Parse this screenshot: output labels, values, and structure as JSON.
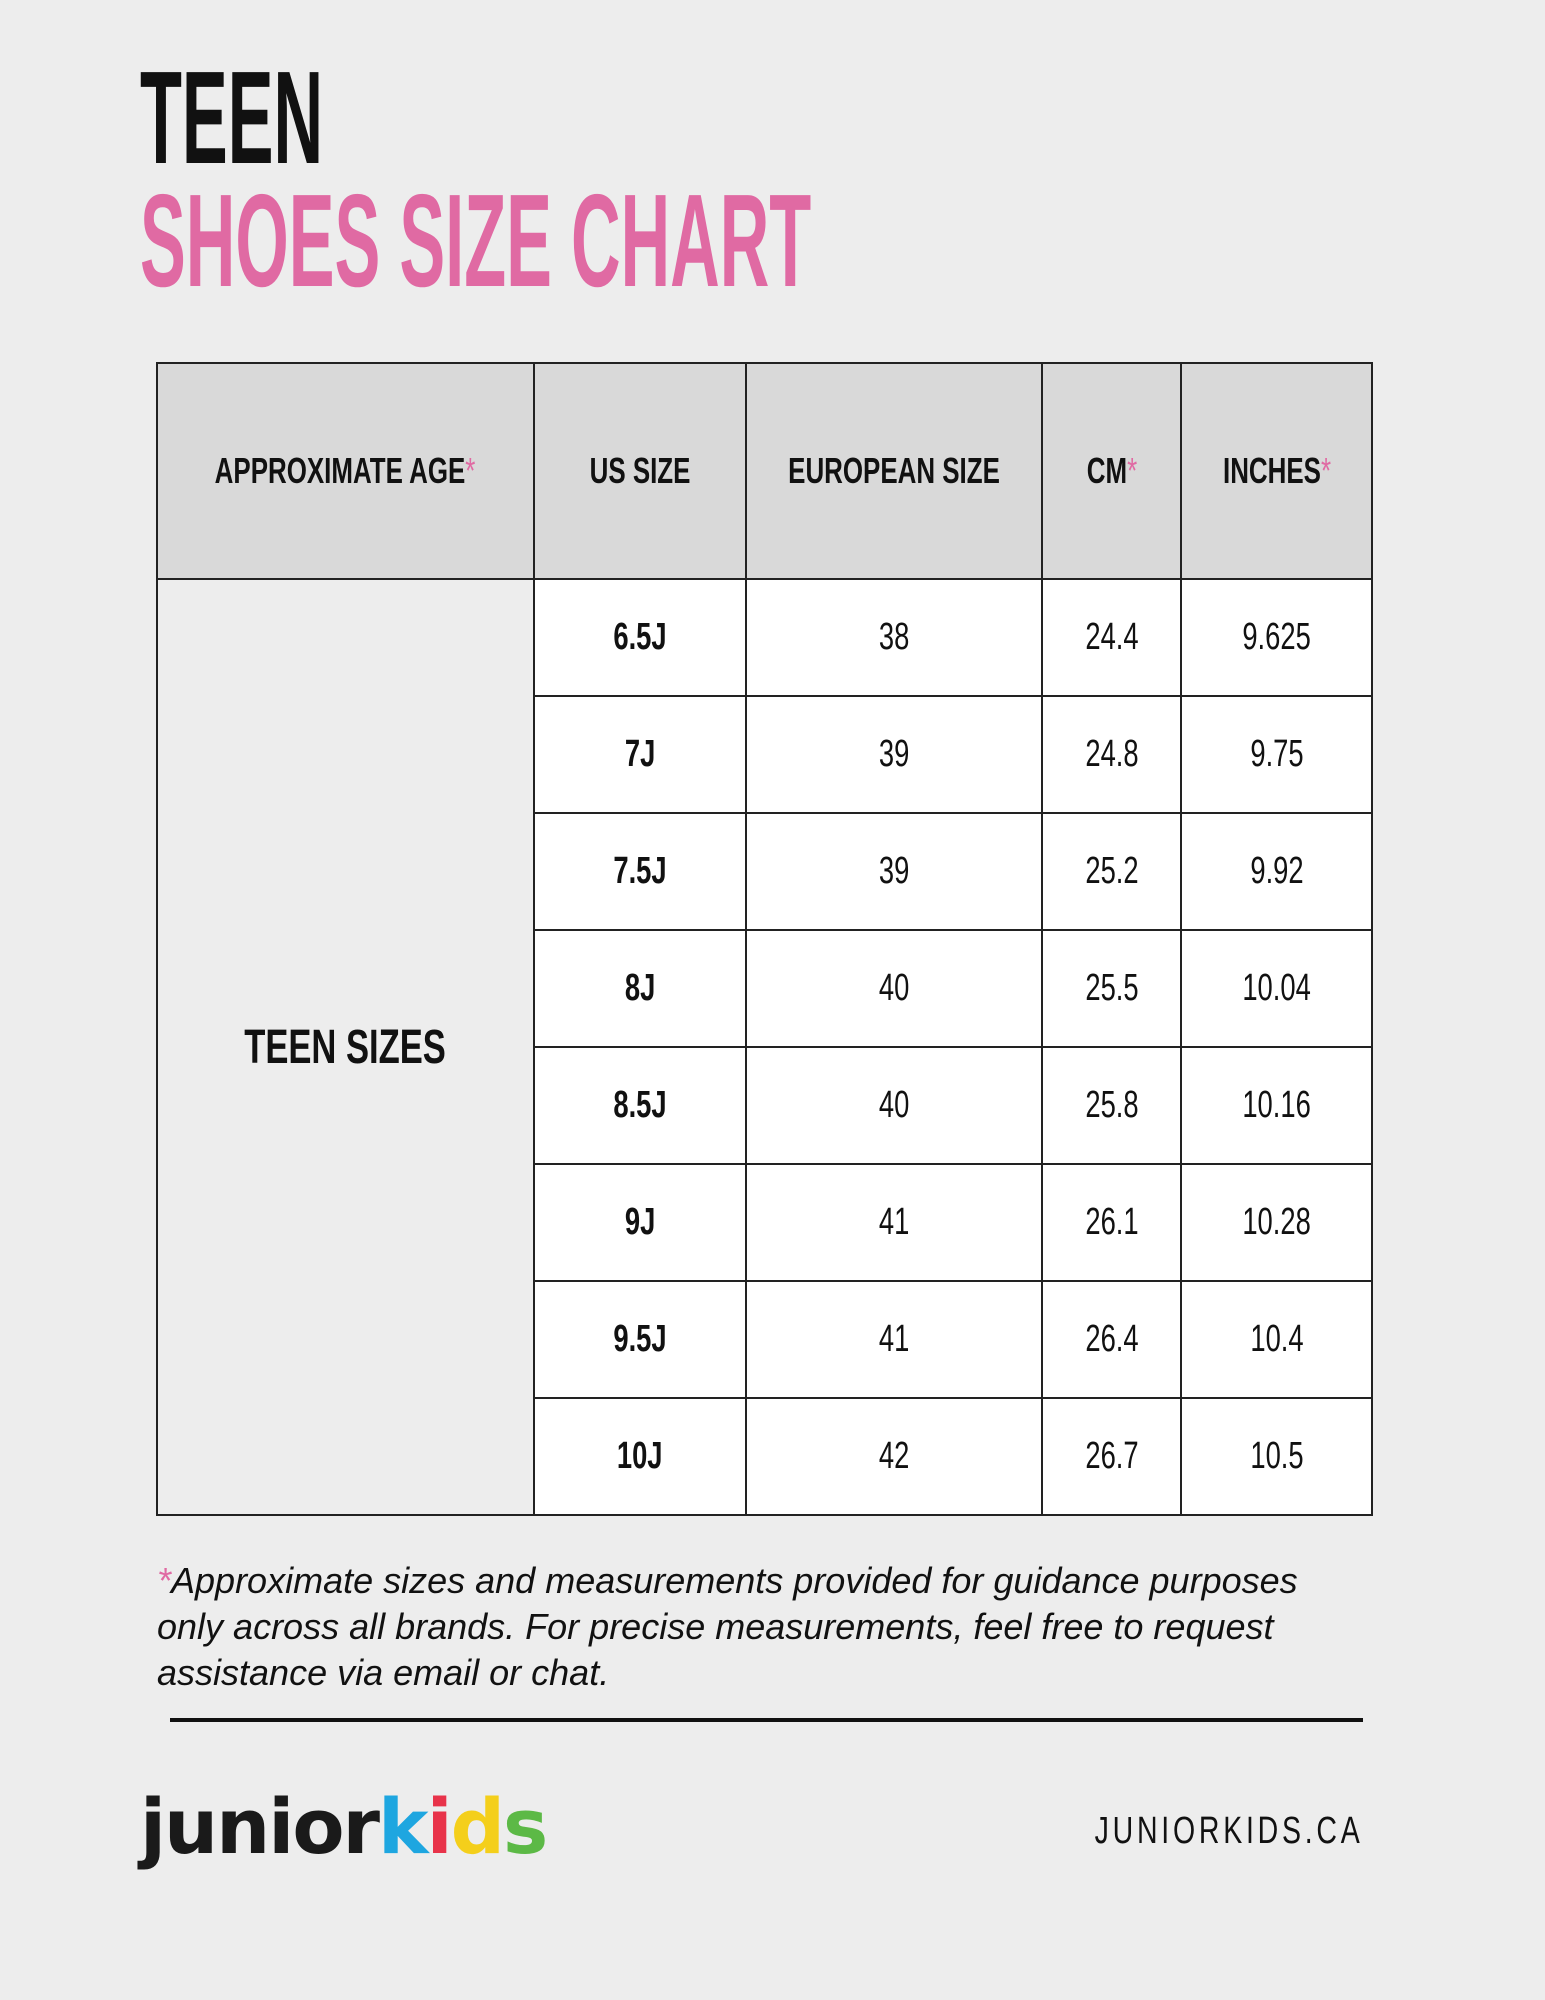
{
  "header": {
    "line1": "TEEN",
    "line2": "SHOES SIZE CHART"
  },
  "table": {
    "columns": [
      {
        "label": "APPROXIMATE AGE",
        "note": "*"
      },
      {
        "label": "US SIZE"
      },
      {
        "label": "EUROPEAN SIZE"
      },
      {
        "label": "CM",
        "note": "*"
      },
      {
        "label": "INCHES",
        "note": "*"
      }
    ],
    "group": "TEEN SIZES",
    "rows": [
      [
        "6.5J",
        38,
        24.4,
        9.625
      ],
      [
        "7J",
        39,
        24.8,
        9.75
      ],
      [
        "7.5J",
        39,
        25.2,
        9.92
      ],
      [
        "8J",
        40,
        25.5,
        10.04
      ],
      [
        "8.5J",
        40,
        25.8,
        10.16
      ],
      [
        "9J",
        41,
        26.1,
        10.28
      ],
      [
        "9.5J",
        41,
        26.4,
        10.4
      ],
      [
        "10J",
        42,
        26.7,
        10.5
      ]
    ]
  },
  "footnote": {
    "mark": "*",
    "text": "Approximate sizes and measurements provided for guidance purposes only across all brands. For precise measurements, feel free to request assistance via email or chat."
  },
  "footer": {
    "logo": [
      "junior",
      "k",
      "i",
      "d",
      "s"
    ],
    "website": "JUNIORKIDS.CA"
  }
}
